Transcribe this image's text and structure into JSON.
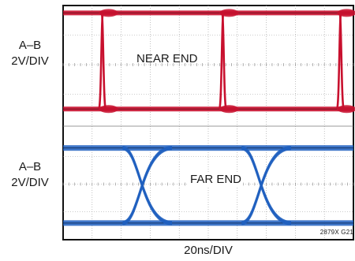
{
  "chart_data": [
    {
      "type": "line",
      "title": "NEAR END",
      "ylabel": [
        "A–B",
        "2V/DIV"
      ],
      "xlabel": "20ns/DIV",
      "x_divisions": 10,
      "y_divisions": 4,
      "grid": true,
      "trace_color": "#c8102e",
      "levels": {
        "high": 1.75,
        "low": -1.5
      },
      "transition_x": [
        1.35,
        5.5,
        9.55
      ],
      "rise_time_div": 0.12
    },
    {
      "type": "line",
      "title": "FAR END",
      "ylabel": [
        "A–B",
        "2V/DIV"
      ],
      "xlabel": "20ns/DIV",
      "x_divisions": 10,
      "y_divisions": 4,
      "grid": true,
      "trace_color": "#1f5fbf",
      "levels": {
        "high": 1.3,
        "low": -1.4
      },
      "crossing_x": [
        2.9,
        7.0
      ],
      "transition_width_div": 0.85
    }
  ],
  "figure_id": "2879X G21"
}
